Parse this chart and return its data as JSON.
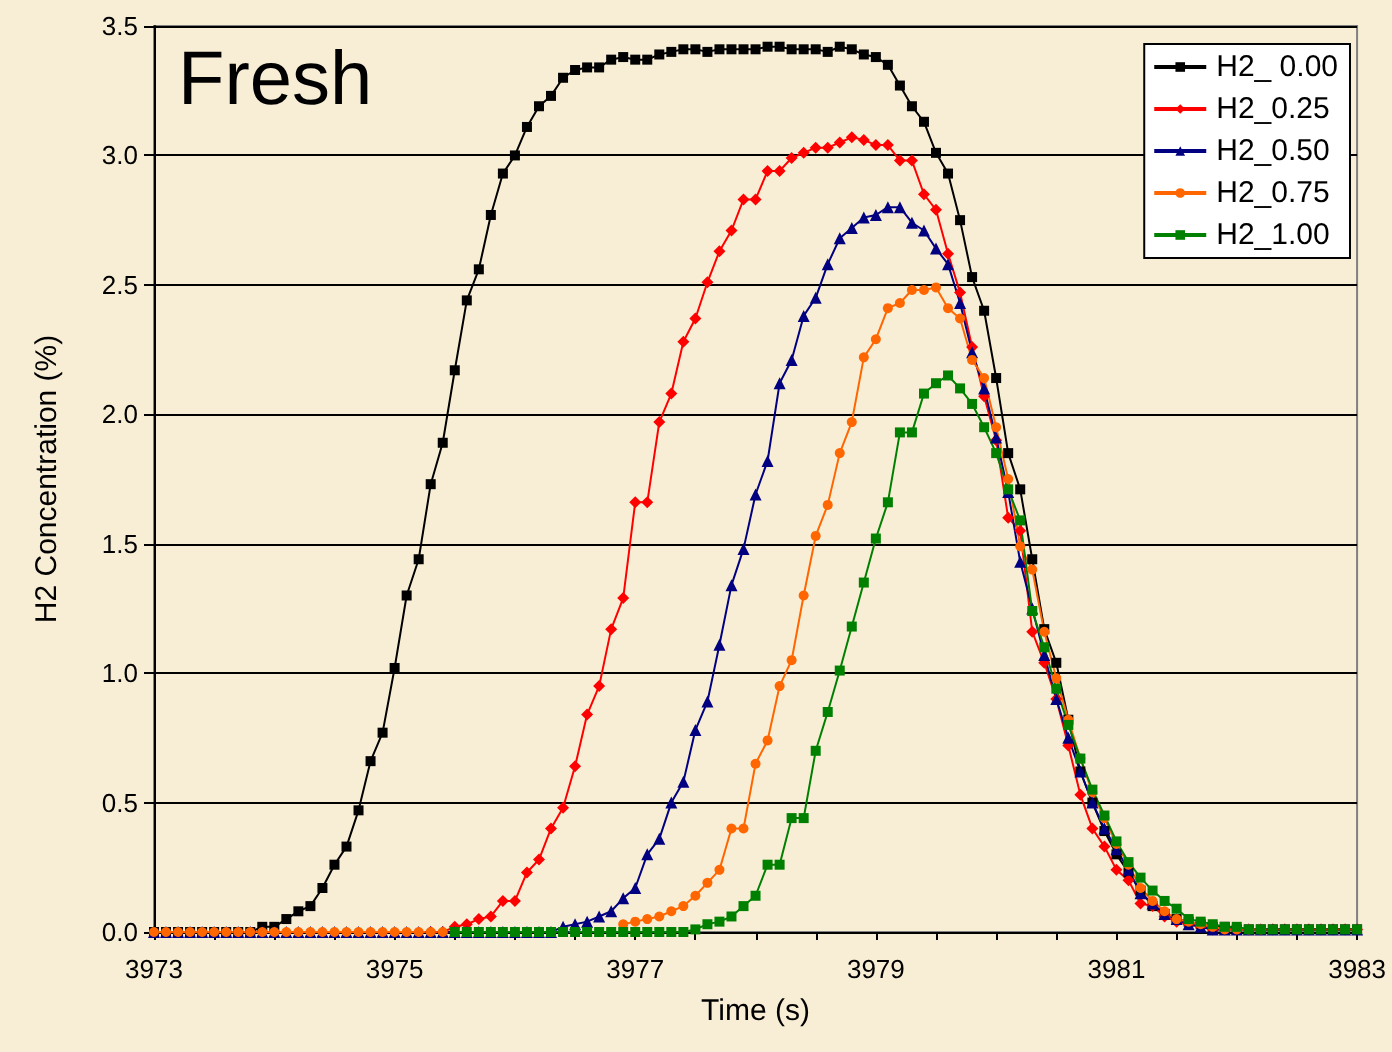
{
  "chart_data": {
    "type": "line",
    "title": "Fresh",
    "xlabel": "Time (s)",
    "ylabel": "H2 Concentration (%)",
    "x": [
      3973.0,
      3973.1,
      3973.2,
      3973.3,
      3973.4,
      3973.5,
      3973.6,
      3973.7,
      3973.8,
      3973.9,
      3974.0,
      3974.1,
      3974.2,
      3974.3,
      3974.4,
      3974.5,
      3974.6,
      3974.7,
      3974.8,
      3974.9,
      3975.0,
      3975.1,
      3975.2,
      3975.3,
      3975.4,
      3975.5,
      3975.6,
      3975.7,
      3975.8,
      3975.9,
      3976.0,
      3976.1,
      3976.2,
      3976.3,
      3976.4,
      3976.5,
      3976.6,
      3976.7,
      3976.8,
      3976.9,
      3977.0,
      3977.1,
      3977.2,
      3977.3,
      3977.4,
      3977.5,
      3977.6,
      3977.7,
      3977.8,
      3977.9,
      3978.0,
      3978.1,
      3978.2,
      3978.3,
      3978.4,
      3978.5,
      3978.6,
      3978.7,
      3978.8,
      3978.9,
      3979.0,
      3979.1,
      3979.2,
      3979.3,
      3979.4,
      3979.5,
      3979.6,
      3979.7,
      3979.8,
      3979.9,
      3980.0,
      3980.1,
      3980.2,
      3980.3,
      3980.4,
      3980.5,
      3980.6,
      3980.7,
      3980.8,
      3980.9,
      3981.0,
      3981.1,
      3981.2,
      3981.3,
      3981.4,
      3981.5,
      3981.6,
      3981.7,
      3981.8,
      3981.9,
      3982.0,
      3982.1,
      3982.2,
      3982.3,
      3982.4,
      3982.5,
      3982.6,
      3982.7,
      3982.8,
      3982.9,
      3983.0
    ],
    "series": [
      {
        "name": "H2_ 0.00",
        "color": "#000000",
        "marker": "square",
        "values": [
          0,
          0,
          0,
          0,
          0,
          0,
          0,
          0,
          0,
          0.02,
          0.02,
          0.05,
          0.08,
          0.1,
          0.17,
          0.26,
          0.33,
          0.47,
          0.66,
          0.77,
          1.02,
          1.3,
          1.44,
          1.73,
          1.89,
          2.17,
          2.44,
          2.56,
          2.77,
          2.93,
          3.0,
          3.11,
          3.19,
          3.23,
          3.3,
          3.33,
          3.34,
          3.34,
          3.37,
          3.38,
          3.37,
          3.37,
          3.39,
          3.4,
          3.41,
          3.41,
          3.4,
          3.41,
          3.41,
          3.41,
          3.41,
          3.42,
          3.42,
          3.41,
          3.41,
          3.41,
          3.4,
          3.42,
          3.41,
          3.39,
          3.38,
          3.35,
          3.27,
          3.19,
          3.13,
          3.01,
          2.93,
          2.75,
          2.53,
          2.4,
          2.14,
          1.85,
          1.71,
          1.44,
          1.17,
          1.04,
          0.82,
          0.62,
          0.5,
          0.39,
          0.3,
          0.23,
          0.16,
          0.1,
          0.07,
          0.05,
          0.04,
          0.03,
          0.02,
          0.02,
          0.01,
          0.01,
          0.01,
          0.01,
          0.01,
          0.01,
          0.01,
          0.01,
          0.01,
          0.01,
          0.01
        ]
      },
      {
        "name": "H2_0.25",
        "color": "#ff0000",
        "marker": "diamond",
        "values": [
          null,
          null,
          null,
          null,
          null,
          null,
          null,
          null,
          null,
          null,
          null,
          null,
          null,
          null,
          null,
          null,
          null,
          null,
          null,
          null,
          null,
          null,
          null,
          0,
          0,
          0.02,
          0.03,
          0.05,
          0.06,
          0.12,
          0.12,
          0.23,
          0.28,
          0.4,
          0.48,
          0.64,
          0.84,
          0.95,
          1.17,
          1.29,
          1.66,
          1.66,
          1.97,
          2.08,
          2.28,
          2.37,
          2.51,
          2.63,
          2.71,
          2.83,
          2.83,
          2.94,
          2.94,
          2.99,
          3.01,
          3.03,
          3.03,
          3.05,
          3.07,
          3.06,
          3.04,
          3.04,
          2.98,
          2.98,
          2.85,
          2.79,
          2.62,
          2.47,
          2.26,
          2.07,
          1.9,
          1.6,
          1.55,
          1.16,
          1.04,
          0.9,
          0.72,
          0.53,
          0.4,
          0.33,
          0.24,
          0.2,
          0.11,
          0.1,
          0.06,
          0.04,
          0.03,
          0.02,
          0.01,
          0.01,
          0.01,
          0.01,
          0.01,
          0.01,
          0.01,
          0.01,
          0.01,
          0.01,
          0.01,
          0.01,
          0.01
        ]
      },
      {
        "name": "H2_0.50",
        "color": "#000080",
        "marker": "triangle",
        "values": [
          0,
          0,
          0,
          0,
          0,
          0,
          0,
          0,
          0,
          0,
          0,
          0,
          0,
          0,
          0,
          0,
          0,
          0,
          0,
          0,
          0,
          0,
          0,
          0,
          0,
          0,
          0,
          0,
          0,
          0,
          0,
          0,
          0,
          0,
          0.02,
          0.03,
          0.04,
          0.06,
          0.08,
          0.13,
          0.17,
          0.3,
          0.36,
          0.5,
          0.58,
          0.78,
          0.89,
          1.11,
          1.34,
          1.48,
          1.69,
          1.82,
          2.12,
          2.21,
          2.38,
          2.45,
          2.58,
          2.68,
          2.72,
          2.76,
          2.77,
          2.8,
          2.8,
          2.74,
          2.71,
          2.64,
          2.58,
          2.43,
          2.24,
          2.1,
          1.91,
          1.7,
          1.43,
          1.25,
          1.07,
          0.9,
          0.75,
          0.62,
          0.5,
          0.4,
          0.32,
          0.24,
          0.15,
          0.11,
          0.07,
          0.05,
          0.03,
          0.02,
          0.01,
          0.01,
          0.01,
          0.01,
          0.01,
          0.01,
          0.01,
          0.01,
          0.01,
          0.01,
          0.01,
          0.01,
          0.01
        ]
      },
      {
        "name": "H2_0.75",
        "color": "#ff6600",
        "marker": "circle",
        "values": [
          0,
          0,
          0,
          0,
          0,
          0,
          0,
          0,
          0,
          0,
          0,
          0,
          0,
          0,
          0,
          0,
          0,
          0,
          0,
          0,
          0,
          0,
          0,
          0,
          0,
          null,
          null,
          null,
          null,
          null,
          null,
          null,
          null,
          null,
          null,
          null,
          null,
          null,
          null,
          0.03,
          0.04,
          0.05,
          0.06,
          0.08,
          0.1,
          0.14,
          0.19,
          0.24,
          0.4,
          0.4,
          0.65,
          0.74,
          0.95,
          1.05,
          1.3,
          1.53,
          1.65,
          1.85,
          1.97,
          2.22,
          2.29,
          2.41,
          2.43,
          2.48,
          2.48,
          2.49,
          2.41,
          2.37,
          2.21,
          2.14,
          1.95,
          1.75,
          1.49,
          1.4,
          1.16,
          0.98,
          0.82,
          0.67,
          0.54,
          0.44,
          0.34,
          0.26,
          0.17,
          0.12,
          0.08,
          0.05,
          0.04,
          0.03,
          0.02,
          0.01,
          0.01,
          0.01,
          0.01,
          null,
          null,
          null,
          null,
          null,
          null,
          null,
          null
        ]
      },
      {
        "name": "H2_1.00",
        "color": "#008000",
        "marker": "square",
        "values": [
          null,
          null,
          null,
          null,
          null,
          null,
          null,
          null,
          null,
          null,
          null,
          null,
          null,
          null,
          null,
          null,
          null,
          null,
          null,
          null,
          null,
          null,
          null,
          null,
          null,
          0,
          0,
          0,
          0,
          0,
          0,
          0,
          0,
          0,
          0,
          0,
          0,
          0,
          0,
          0,
          0,
          0,
          0,
          0,
          0,
          0.01,
          0.03,
          0.04,
          0.06,
          0.1,
          0.14,
          0.26,
          0.26,
          0.44,
          0.44,
          0.7,
          0.85,
          1.01,
          1.18,
          1.35,
          1.52,
          1.66,
          1.93,
          1.93,
          2.08,
          2.12,
          2.15,
          2.1,
          2.04,
          1.95,
          1.85,
          1.71,
          1.59,
          1.24,
          1.1,
          0.94,
          0.8,
          0.67,
          0.55,
          0.45,
          0.35,
          0.27,
          0.21,
          0.16,
          0.12,
          0.09,
          0.05,
          0.04,
          0.03,
          0.02,
          0.02,
          0.01,
          0.01,
          0.01,
          0.01,
          0.01,
          0.01,
          0.01,
          0.01,
          0.01,
          0.01
        ]
      }
    ],
    "xlim": [
      3973,
      3983
    ],
    "xticks": [
      3973,
      {
        "value": 3973.5,
        "label": null
      },
      {
        "value": 3974,
        "label": null
      },
      {
        "value": 3974.5,
        "label": null
      },
      3975,
      {
        "value": 3975.5,
        "label": null
      },
      {
        "value": 3976,
        "label": null
      },
      {
        "value": 3976.5,
        "label": null
      },
      3977,
      {
        "value": 3977.5,
        "label": null
      },
      {
        "value": 3978,
        "label": null
      },
      {
        "value": 3978.5,
        "label": null
      },
      3979,
      {
        "value": 3979.5,
        "label": null
      },
      {
        "value": 3980,
        "label": null
      },
      {
        "value": 3980.5,
        "label": null
      },
      3981,
      {
        "value": 3981.5,
        "label": null
      },
      {
        "value": 3982,
        "label": null
      },
      {
        "value": 3982.5,
        "label": null
      },
      3983
    ],
    "ylim": [
      0,
      3.5
    ],
    "yticks": [
      {
        "value": 0,
        "label": "0.0"
      },
      {
        "value": 0.5,
        "label": "0.5"
      },
      {
        "value": 1,
        "label": "1.0"
      },
      {
        "value": 1.5,
        "label": "1.5"
      },
      {
        "value": 2,
        "label": "2.0"
      },
      {
        "value": 2.5,
        "label": "2.5"
      },
      {
        "value": 3,
        "label": "3.0"
      },
      {
        "value": 3.5,
        "label": "3.5"
      }
    ],
    "grid": "y",
    "legend": "top right",
    "line_style": "solid"
  }
}
